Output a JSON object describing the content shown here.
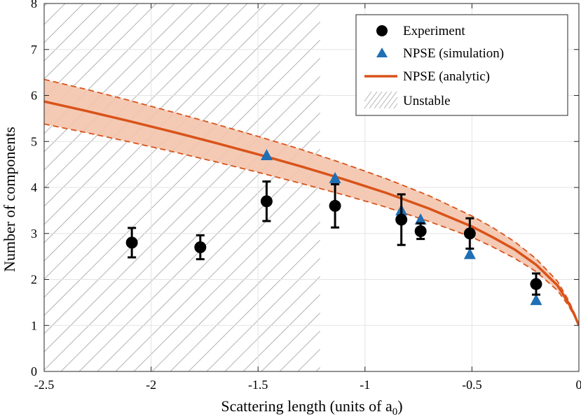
{
  "chart_data": {
    "type": "scatter",
    "xlabel": "Scattering length (units of a",
    "xlabel_subscript": "0",
    "xlabel_close": ")",
    "ylabel": "Number of components",
    "xlim": [
      -2.5,
      0
    ],
    "ylim": [
      0,
      8
    ],
    "x_ticks": [
      -2.5,
      -2,
      -1.5,
      -1,
      -0.5,
      0
    ],
    "x_tick_labels": [
      "-2.5",
      "-2",
      "-1.5",
      "-1",
      "-0.5",
      "0"
    ],
    "y_ticks": [
      0,
      1,
      2,
      3,
      4,
      5,
      6,
      7,
      8
    ],
    "y_tick_labels": [
      "0",
      "1",
      "2",
      "3",
      "4",
      "5",
      "6",
      "7",
      "8"
    ],
    "grid": true,
    "legend_position": "top-right",
    "unstable_region": {
      "x_from": -2.5,
      "x_to": -1.21
    },
    "series": [
      {
        "name": "Experiment",
        "kind": "points-errorbars",
        "marker": "circle",
        "color": "#000000",
        "x": [
          -2.09,
          -1.77,
          -1.46,
          -1.14,
          -0.83,
          -0.74,
          -0.51,
          -0.2
        ],
        "y": [
          2.8,
          2.7,
          3.7,
          3.6,
          3.3,
          3.05,
          3.0,
          1.9
        ],
        "err_low": [
          0.32,
          0.26,
          0.43,
          0.47,
          0.55,
          0.17,
          0.33,
          0.23
        ],
        "err_high": [
          0.32,
          0.26,
          0.43,
          0.47,
          0.55,
          0.17,
          0.33,
          0.23
        ]
      },
      {
        "name": "NPSE (simulation)",
        "kind": "points",
        "marker": "triangle",
        "color": "#1f6fb4",
        "x": [
          -1.46,
          -1.14,
          -0.83,
          -0.74,
          -0.51,
          -0.2
        ],
        "y": [
          4.7,
          4.2,
          3.5,
          3.3,
          2.55,
          1.55
        ]
      },
      {
        "name": "NPSE (analytic)",
        "kind": "line-band",
        "color": "#d95319",
        "band_color": "#f3c4ad",
        "x": [
          -2.5,
          -2.3,
          -2.1,
          -1.9,
          -1.7,
          -1.5,
          -1.3,
          -1.1,
          -0.9,
          -0.7,
          -0.5,
          -0.4,
          -0.3,
          -0.2,
          -0.1,
          -0.05,
          -0.02,
          0
        ],
        "y": [
          5.87,
          5.66,
          5.44,
          5.21,
          4.97,
          4.72,
          4.46,
          4.18,
          3.88,
          3.54,
          3.15,
          2.91,
          2.65,
          2.32,
          1.87,
          1.5,
          1.22,
          1.0
        ],
        "y_upper": [
          6.35,
          6.13,
          5.89,
          5.64,
          5.38,
          5.11,
          4.83,
          4.52,
          4.19,
          3.82,
          3.38,
          3.12,
          2.82,
          2.45,
          1.96,
          1.56,
          1.26,
          1.0
        ],
        "y_lower": [
          5.38,
          5.19,
          4.99,
          4.78,
          4.56,
          4.33,
          4.09,
          3.84,
          3.57,
          3.26,
          2.92,
          2.7,
          2.46,
          2.17,
          1.76,
          1.44,
          1.19,
          1.0
        ]
      },
      {
        "name": "Unstable",
        "kind": "hatched-region",
        "color": "#b4b4b4"
      }
    ]
  }
}
